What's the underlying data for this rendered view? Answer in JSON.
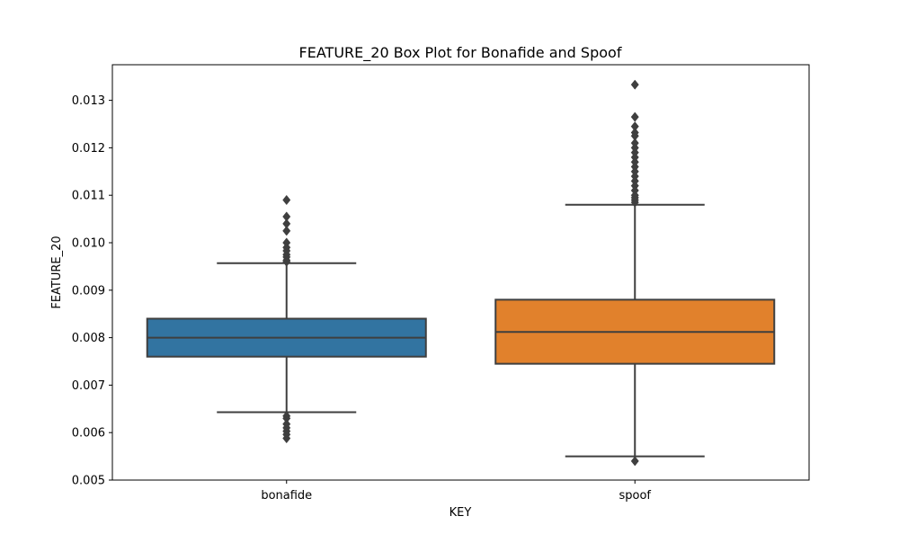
{
  "chart_data": {
    "type": "box",
    "title": "FEATURE_20 Box Plot for Bonafide and Spoof",
    "xlabel": "KEY",
    "ylabel": "FEATURE_20",
    "categories": [
      "bonafide",
      "spoof"
    ],
    "ylim": [
      0.005,
      0.01375
    ],
    "yticks": [
      "0.005",
      "0.006",
      "0.007",
      "0.008",
      "0.009",
      "0.010",
      "0.011",
      "0.012",
      "0.013"
    ],
    "grid": false,
    "boxes": [
      {
        "category": "bonafide",
        "color": "#3274a1",
        "q1": 0.0076,
        "median": 0.008,
        "q3": 0.0084,
        "whisker_low": 0.00643,
        "whisker_high": 0.00957,
        "outliers": [
          0.0109,
          0.01055,
          0.0104,
          0.01025,
          0.01,
          0.0099,
          0.00983,
          0.00975,
          0.0097,
          0.00963,
          0.0096,
          0.00635,
          0.0063,
          0.00618,
          0.0061,
          0.00603,
          0.00596,
          0.00588
        ]
      },
      {
        "category": "spoof",
        "color": "#e1812c",
        "q1": 0.00745,
        "median": 0.00812,
        "q3": 0.0088,
        "whisker_low": 0.0055,
        "whisker_high": 0.0108,
        "outliers": [
          0.01333,
          0.01265,
          0.01245,
          0.01232,
          0.01225,
          0.0121,
          0.012,
          0.0119,
          0.0118,
          0.0117,
          0.0116,
          0.0115,
          0.0114,
          0.0113,
          0.0112,
          0.0111,
          0.011,
          0.01095,
          0.0109,
          0.01085,
          0.0054
        ]
      }
    ]
  }
}
